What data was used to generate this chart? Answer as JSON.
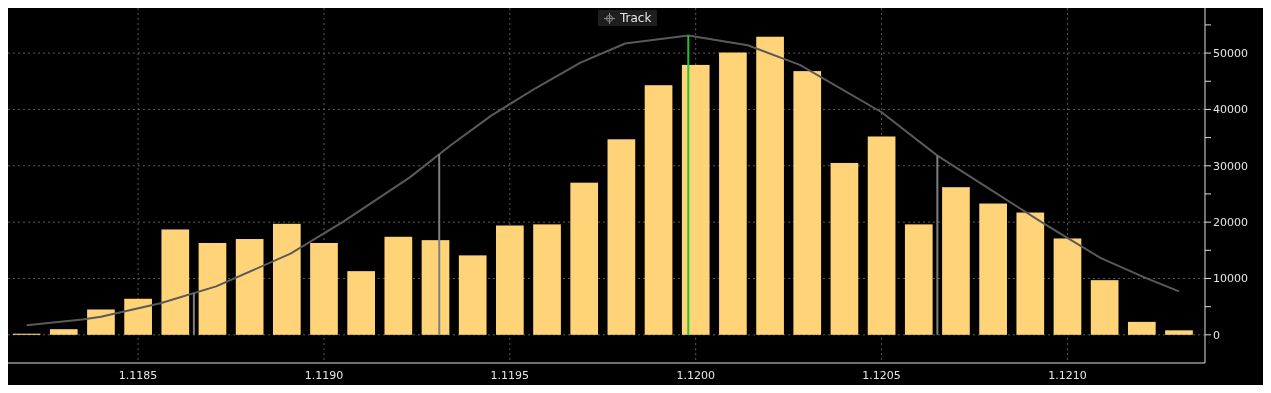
{
  "chart_data": {
    "type": "bar",
    "annotations": [
      "Track"
    ],
    "xlim": [
      1.11815,
      1.12137
    ],
    "xticks": [
      {
        "value": 1.1185,
        "label": "1.1185"
      },
      {
        "value": 1.119,
        "label": "1.1190"
      },
      {
        "value": 1.1195,
        "label": "1.1195"
      },
      {
        "value": 1.12,
        "label": "1.1200"
      },
      {
        "value": 1.1205,
        "label": "1.1205"
      },
      {
        "value": 1.121,
        "label": "1.1210"
      }
    ],
    "ylim": [
      -5000,
      58000
    ],
    "yticks": [
      0,
      {
        "value": 5000,
        "label": null
      },
      10000,
      {
        "value": 15000,
        "label": null
      },
      20000,
      {
        "value": 25000,
        "label": null
      },
      30000,
      {
        "value": 35000,
        "label": null
      },
      40000,
      {
        "value": 45000,
        "label": null
      },
      50000,
      {
        "value": 55000,
        "label": null
      }
    ],
    "grid": true,
    "series": [
      {
        "color": "#ffd479",
        "x": [
          1.1182,
          1.1183,
          1.1184,
          1.1185,
          1.1186,
          1.1187,
          1.1188,
          1.1189,
          1.119,
          1.1191,
          1.1192,
          1.1193,
          1.1194,
          1.1195,
          1.1196,
          1.1197,
          1.1198,
          1.1199,
          1.12,
          1.1201,
          1.1202,
          1.1203,
          1.1204,
          1.1205,
          1.1206,
          1.1207,
          1.1208,
          1.1209,
          1.121,
          1.1211,
          1.1212,
          1.1213
        ],
        "values": [
          200,
          1000,
          4500,
          6400,
          18700,
          16300,
          17000,
          19700,
          16300,
          11300,
          17400,
          16800,
          14100,
          19400,
          19600,
          27000,
          34700,
          44300,
          47900,
          50100,
          52900,
          46800,
          30500,
          35200,
          19600,
          26200,
          23300,
          21700,
          17100,
          9700,
          2300,
          800
        ]
      },
      {
        "type": "line",
        "color": "#5a5a5a",
        "marker": "none",
        "line_style": "solid",
        "x": [
          1.1182,
          1.11835,
          1.1184,
          1.11856,
          1.11871,
          1.11891,
          1.11905,
          1.11923,
          1.11934,
          1.11945,
          1.11957,
          1.11969,
          1.11981,
          1.11998,
          1.12014,
          1.12028,
          1.1205,
          1.12065,
          1.12079,
          1.12094,
          1.12109,
          1.12121,
          1.1213
        ],
        "values": [
          1700,
          2700,
          3200,
          5600,
          8600,
          14400,
          20000,
          27900,
          33600,
          38900,
          43800,
          48300,
          51700,
          53100,
          51400,
          47900,
          39500,
          31800,
          25900,
          19600,
          13600,
          10100,
          7700
        ]
      }
    ],
    "ref_lines": [
      {
        "axis": "x",
        "value": 1.11865,
        "color": "#7f7f7f"
      },
      {
        "axis": "x",
        "value": 1.11931,
        "color": "#7f7f7f"
      },
      {
        "axis": "x",
        "value": 1.12065,
        "color": "#7f7f7f"
      },
      {
        "axis": "x",
        "value": 1.11998,
        "color": "#22c42e"
      }
    ]
  }
}
